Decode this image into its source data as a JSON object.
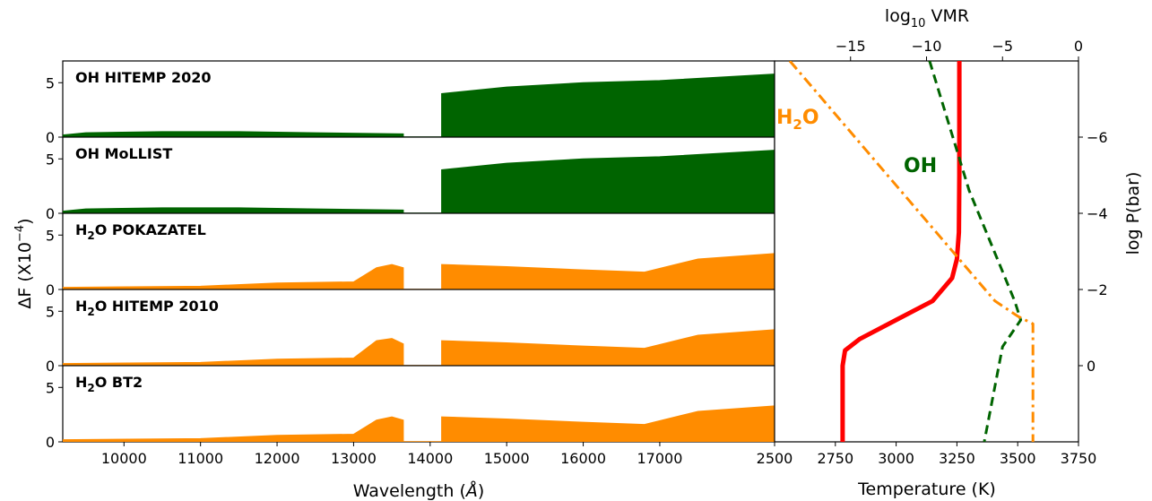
{
  "chart_data": [
    {
      "type": "area",
      "panel": "left",
      "xlabel_prefix": "Wavelength (",
      "xlabel_unit": "Å",
      "xlabel_suffix": ")",
      "ylabel_prefix": "ΔF (X10",
      "ylabel_exp": "−4",
      "ylabel_suffix": ")",
      "xlim": [
        9200,
        18500
      ],
      "xticks": [
        10000,
        11000,
        12000,
        13000,
        14000,
        15000,
        16000,
        17000
      ],
      "xtick_labels": [
        "10000",
        "11000",
        "12000",
        "13000",
        "14000",
        "15000",
        "16000",
        "17000"
      ],
      "ylim": [
        0,
        7
      ],
      "yticks": [
        0,
        5
      ],
      "ytick_labels": [
        "0",
        "5"
      ],
      "gap": [
        13650,
        14150
      ],
      "panels": [
        {
          "label_mol": "OH",
          "label_sub": "",
          "label_rest": " HITEMP 2020",
          "color": "#006400",
          "x": [
            9200,
            9500,
            10500,
            11500,
            12500,
            13650,
            14150,
            15000,
            16000,
            17000,
            18500
          ],
          "y": [
            0.2,
            0.4,
            0.5,
            0.5,
            0.4,
            0.3,
            4.0,
            4.6,
            5.0,
            5.2,
            5.8
          ]
        },
        {
          "label_mol": "OH",
          "label_sub": "",
          "label_rest": " MoLLIST",
          "color": "#006400",
          "x": [
            9200,
            9500,
            10500,
            11500,
            12500,
            13650,
            14150,
            15000,
            16000,
            17000,
            18500
          ],
          "y": [
            0.2,
            0.4,
            0.5,
            0.5,
            0.4,
            0.3,
            4.0,
            4.6,
            5.0,
            5.2,
            5.8
          ]
        },
        {
          "label_mol": "H",
          "label_sub": "2",
          "label_rest": "O POKAZATEL",
          "color": "#ff8c00",
          "x": [
            9200,
            11000,
            12000,
            13000,
            13300,
            13500,
            13650,
            14150,
            15000,
            16000,
            16800,
            17500,
            18500
          ],
          "y": [
            0.2,
            0.3,
            0.6,
            0.7,
            2.0,
            2.3,
            2.0,
            2.3,
            2.1,
            1.8,
            1.6,
            2.8,
            3.3
          ]
        },
        {
          "label_mol": "H",
          "label_sub": "2",
          "label_rest": "O HITEMP 2010",
          "color": "#ff8c00",
          "x": [
            9200,
            11000,
            12000,
            13000,
            13300,
            13500,
            13650,
            14150,
            15000,
            16000,
            16800,
            17500,
            18500
          ],
          "y": [
            0.2,
            0.3,
            0.6,
            0.7,
            2.3,
            2.5,
            2.0,
            2.3,
            2.1,
            1.8,
            1.6,
            2.8,
            3.3
          ]
        },
        {
          "label_mol": "H",
          "label_sub": "2",
          "label_rest": "O BT2",
          "color": "#ff8c00",
          "x": [
            9200,
            11000,
            12000,
            13000,
            13300,
            13500,
            13650,
            14150,
            15000,
            16000,
            16800,
            17500,
            18500
          ],
          "y": [
            0.2,
            0.3,
            0.6,
            0.7,
            2.0,
            2.3,
            2.0,
            2.3,
            2.1,
            1.8,
            1.6,
            2.8,
            3.3
          ]
        }
      ]
    },
    {
      "type": "line",
      "panel": "right",
      "xlabel": "Temperature (K)",
      "xlim": [
        2500,
        3750
      ],
      "xticks": [
        2500,
        2750,
        3000,
        3250,
        3500,
        3750
      ],
      "xtick_labels": [
        "2500",
        "2750",
        "3000",
        "3250",
        "3500",
        "3750"
      ],
      "x2label_prefix": "log",
      "x2label_sub": "10",
      "x2label_suffix": " VMR",
      "x2lim": [
        -20,
        0
      ],
      "x2ticks": [
        -15,
        -10,
        -5,
        0
      ],
      "x2tick_labels": [
        "−15",
        "−10",
        "−5",
        "0"
      ],
      "y2label": "log P(bar)",
      "ylim": [
        -8,
        2
      ],
      "ylim_note": "log P decreases upward",
      "y2ticks": [
        -6,
        -4,
        -2,
        0
      ],
      "y2tick_labels": [
        "−6",
        "−4",
        "−2",
        "0"
      ],
      "series": [
        {
          "name": "",
          "axis": "temperature",
          "color": "#ff0000",
          "style": "solid",
          "x": [
            3260,
            3260,
            3258,
            3250,
            3230,
            3150,
            3000,
            2850,
            2790,
            2780,
            2780
          ],
          "y": [
            -8,
            -5,
            -3.5,
            -2.8,
            -2.3,
            -1.7,
            -1.2,
            -0.7,
            -0.4,
            0,
            2
          ]
        },
        {
          "name_mol": "OH",
          "name_sub": "",
          "name_rest": "",
          "axis": "vmr",
          "color": "#006400",
          "style": "dashed",
          "x": [
            -9.8,
            -7.2,
            -4.2,
            -3.8,
            -5,
            -6.2
          ],
          "y": [
            -8,
            -4.6,
            -1.7,
            -1.2,
            -0.5,
            2
          ]
        },
        {
          "name_mol": "H",
          "name_sub": "2",
          "name_rest": "O",
          "axis": "vmr",
          "color": "#ff8c00",
          "style": "dashdot",
          "x": [
            -19,
            -5.5,
            -4,
            -3,
            -3,
            -3
          ],
          "y": [
            -8,
            -1.7,
            -1.3,
            -1.1,
            -0.5,
            2
          ]
        }
      ]
    }
  ]
}
